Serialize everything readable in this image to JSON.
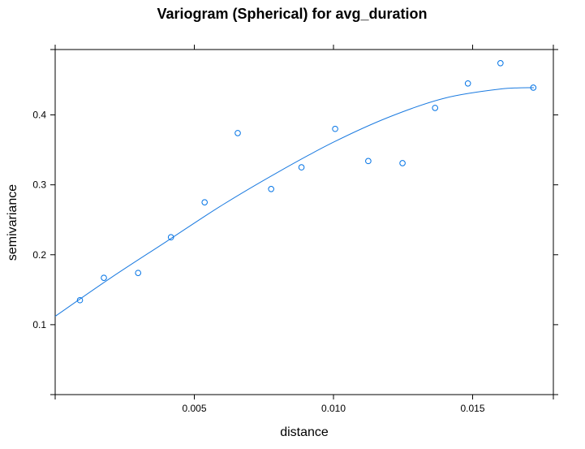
{
  "chart_data": {
    "type": "scatter",
    "title": "Variogram (Spherical) for avg_duration",
    "xlabel": "distance",
    "ylabel": "semivariance",
    "xlim": [
      0.0,
      0.0179
    ],
    "ylim": [
      0.0,
      0.4935
    ],
    "xticks": [
      0.005,
      0.01,
      0.015
    ],
    "xtick_labels": [
      "0.005",
      "0.010",
      "0.015"
    ],
    "yticks": [
      0.1,
      0.2,
      0.3,
      0.4
    ],
    "ytick_labels": [
      "0.1",
      "0.2",
      "0.3",
      "0.4"
    ],
    "grid": false,
    "legend": "none",
    "colors": {
      "points": "#0072e5",
      "fit": "#1a7ae0"
    },
    "series": [
      {
        "kind": "points",
        "x": [
          0.00089,
          0.00175,
          0.00298,
          0.00416,
          0.00537,
          0.00656,
          0.00776,
          0.00885,
          0.01006,
          0.01125,
          0.01248,
          0.01365,
          0.01483,
          0.016,
          0.01718
        ],
        "y": [
          0.135,
          0.167,
          0.174,
          0.225,
          0.275,
          0.374,
          0.294,
          0.325,
          0.38,
          0.334,
          0.331,
          0.41,
          0.445,
          0.474,
          0.439
        ]
      },
      {
        "kind": "fitted-model",
        "model": "spherical",
        "x": [
          0.0,
          0.002,
          0.004,
          0.006,
          0.008,
          0.01,
          0.012,
          0.014,
          0.016,
          0.0172
        ],
        "y": [
          0.112,
          0.167,
          0.219,
          0.271,
          0.318,
          0.361,
          0.397,
          0.424,
          0.437,
          0.439
        ]
      }
    ]
  }
}
